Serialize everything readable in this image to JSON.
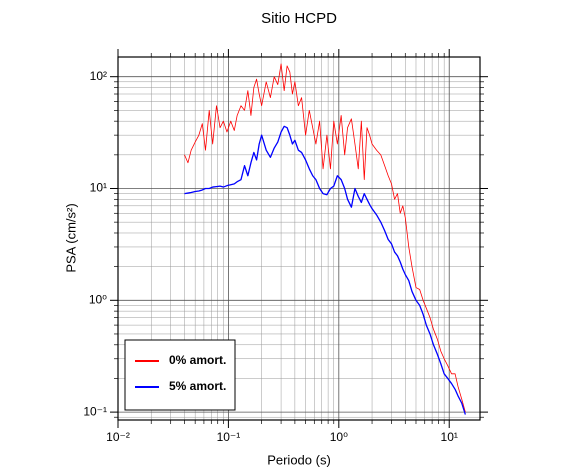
{
  "chart_data": {
    "type": "line",
    "title": "Sitio HCPD",
    "xlabel": "Periodo (s)",
    "ylabel": "PSA (cm/s²)",
    "log_x": true,
    "log_y": true,
    "grid": true,
    "minor_grid": true,
    "legend": "lower left",
    "xlim": [
      0.01,
      19
    ],
    "ylim": [
      0.085,
      150
    ],
    "xticks": [
      {
        "value": 0.01,
        "label": "10⁻²"
      },
      {
        "value": 0.1,
        "label": "10⁻¹"
      },
      {
        "value": 1,
        "label": "10⁰"
      },
      {
        "value": 10,
        "label": "10¹"
      }
    ],
    "yticks": [
      {
        "value": 0.1,
        "label": "10⁻¹"
      },
      {
        "value": 1,
        "label": "10⁰"
      },
      {
        "value": 10,
        "label": "10¹"
      },
      {
        "value": 100,
        "label": "10²"
      }
    ],
    "x": [
      0.04,
      0.043,
      0.046,
      0.05,
      0.054,
      0.058,
      0.062,
      0.067,
      0.072,
      0.078,
      0.084,
      0.09,
      0.097,
      0.105,
      0.113,
      0.12,
      0.13,
      0.14,
      0.15,
      0.16,
      0.17,
      0.18,
      0.19,
      0.2,
      0.22,
      0.24,
      0.26,
      0.28,
      0.3,
      0.32,
      0.34,
      0.36,
      0.38,
      0.4,
      0.43,
      0.46,
      0.5,
      0.54,
      0.58,
      0.62,
      0.67,
      0.72,
      0.78,
      0.84,
      0.9,
      0.97,
      1.05,
      1.13,
      1.2,
      1.3,
      1.4,
      1.5,
      1.6,
      1.7,
      1.8,
      1.9,
      2,
      2.2,
      2.4,
      2.6,
      2.8,
      3,
      3.2,
      3.4,
      3.6,
      3.8,
      4,
      4.3,
      4.6,
      5,
      5.4,
      5.8,
      6.2,
      6.7,
      7.2,
      7.8,
      8.4,
      9,
      9.7,
      10.5,
      11.3,
      12,
      13,
      14
    ],
    "series": [
      {
        "name": "0% amort.",
        "color": "#ff0000",
        "width": 0.8,
        "values": [
          20,
          17,
          22,
          26,
          30,
          38,
          22,
          50,
          25,
          55,
          35,
          40,
          32,
          40,
          33,
          45,
          55,
          50,
          75,
          45,
          80,
          95,
          70,
          55,
          90,
          65,
          100,
          85,
          130,
          75,
          125,
          110,
          70,
          90,
          55,
          65,
          30,
          50,
          35,
          25,
          40,
          15,
          30,
          15,
          40,
          25,
          45,
          20,
          35,
          42,
          25,
          15,
          40,
          12,
          35,
          30,
          25,
          22,
          20,
          16,
          13,
          11,
          8,
          9,
          6,
          7,
          5.5,
          3,
          2,
          1.3,
          1.25,
          1.0,
          0.85,
          0.7,
          0.55,
          0.45,
          0.35,
          0.3,
          0.26,
          0.22,
          0.22,
          0.17,
          0.13,
          0.1
        ]
      },
      {
        "name": "5% amort.",
        "color": "#0000ff",
        "width": 1.3,
        "values": [
          9,
          9.1,
          9.2,
          9.4,
          9.5,
          9.7,
          10,
          10,
          10.3,
          10.4,
          10.5,
          10.3,
          10.6,
          10.8,
          11,
          11.5,
          12,
          16,
          13,
          17,
          21,
          18,
          25,
          30,
          22,
          19,
          23,
          26,
          32,
          36,
          35,
          30,
          25,
          27,
          22,
          21,
          18,
          15,
          13,
          12,
          10,
          9,
          8.8,
          10,
          10.5,
          13,
          12,
          10,
          8,
          6.8,
          10,
          8.5,
          7.5,
          9,
          8,
          7.2,
          6.6,
          5.8,
          5,
          4.2,
          3.5,
          3.2,
          2.7,
          2.5,
          2.2,
          1.9,
          1.7,
          1.5,
          1.2,
          1.0,
          0.9,
          0.75,
          0.6,
          0.5,
          0.4,
          0.33,
          0.27,
          0.22,
          0.2,
          0.18,
          0.16,
          0.14,
          0.12,
          0.095
        ]
      }
    ]
  }
}
